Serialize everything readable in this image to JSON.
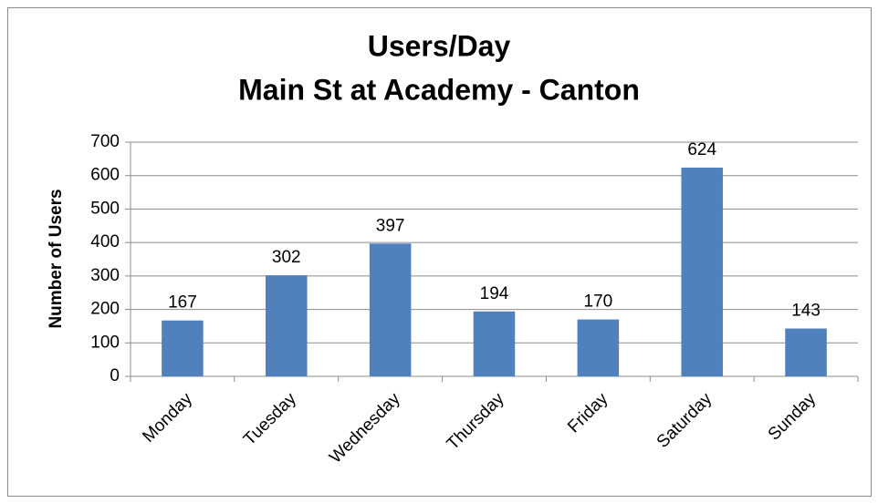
{
  "chart_data": {
    "type": "bar",
    "title": "Users/Day",
    "subtitle": "Main St at Academy - Canton",
    "y_label": "Number of Users",
    "categories": [
      "Monday",
      "Tuesday",
      "Wednesday",
      "Thursday",
      "Friday",
      "Saturday",
      "Sunday"
    ],
    "values": [
      167,
      302,
      397,
      194,
      170,
      624,
      143
    ],
    "color": "#4f81bd",
    "ylim": [
      0,
      700
    ],
    "yticks": [
      0,
      100,
      200,
      300,
      400,
      500,
      600,
      700
    ],
    "grid": true,
    "data_labels": true
  }
}
